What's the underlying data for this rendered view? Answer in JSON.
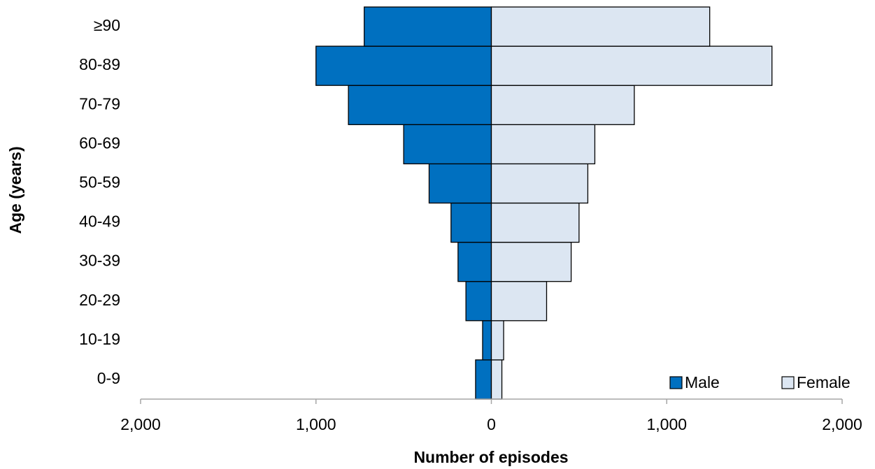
{
  "chart_data": {
    "type": "pyramid",
    "x_label": "Number of episodes",
    "y_label": "Age (years)",
    "categories": [
      "0-9",
      "10-19",
      "20-29",
      "30-39",
      "40-49",
      "50-59",
      "60-69",
      "70-79",
      "80-89",
      "≥90"
    ],
    "series": [
      {
        "name": "Male",
        "color": "#0070c0",
        "values": [
          -90,
          -50,
          -145,
          -190,
          -230,
          -355,
          -500,
          -815,
          -1000,
          -725
        ]
      },
      {
        "name": "Female",
        "color": "#dce6f2",
        "values": [
          60,
          70,
          315,
          455,
          500,
          550,
          590,
          815,
          1600,
          1245
        ]
      }
    ],
    "xlim": [
      -2000,
      2000
    ],
    "xticks": [
      {
        "value": -2000,
        "label": "2,000"
      },
      {
        "value": -1000,
        "label": "1,000"
      },
      0,
      {
        "value": 1000,
        "label": "1,000"
      },
      {
        "value": 2000,
        "label": "2,000"
      }
    ],
    "legend": "bottom-right"
  }
}
